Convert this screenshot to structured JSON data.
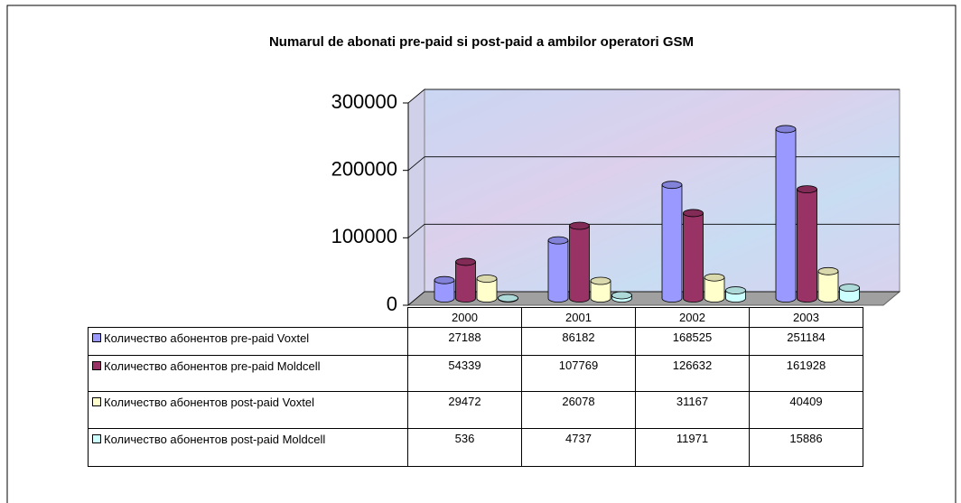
{
  "chart_data": {
    "type": "bar3d",
    "title": "Numarul de abonati pre-paid si post-paid a ambilor operatori GSM",
    "categories": [
      "2000",
      "2001",
      "2002",
      "2003"
    ],
    "series": [
      {
        "name": "Количество абонентов pre-paid Voxtel",
        "color": "#9999ff",
        "values": [
          27188,
          86182,
          168525,
          251184
        ]
      },
      {
        "name": "Количество абонентов pre-paid Moldcell",
        "color": "#993366",
        "values": [
          54339,
          107769,
          126632,
          161928
        ]
      },
      {
        "name": "Количество абонентов post-paid Voxtel",
        "color": "#ffffcc",
        "values": [
          29472,
          26078,
          31167,
          40409
        ]
      },
      {
        "name": "Количество абонентов post-paid Moldcell",
        "color": "#ccffff",
        "values": [
          536,
          4737,
          11971,
          15886
        ]
      }
    ],
    "ylim": [
      0,
      300000
    ],
    "yticks": [
      0,
      100000,
      200000,
      300000
    ],
    "grid": true
  }
}
